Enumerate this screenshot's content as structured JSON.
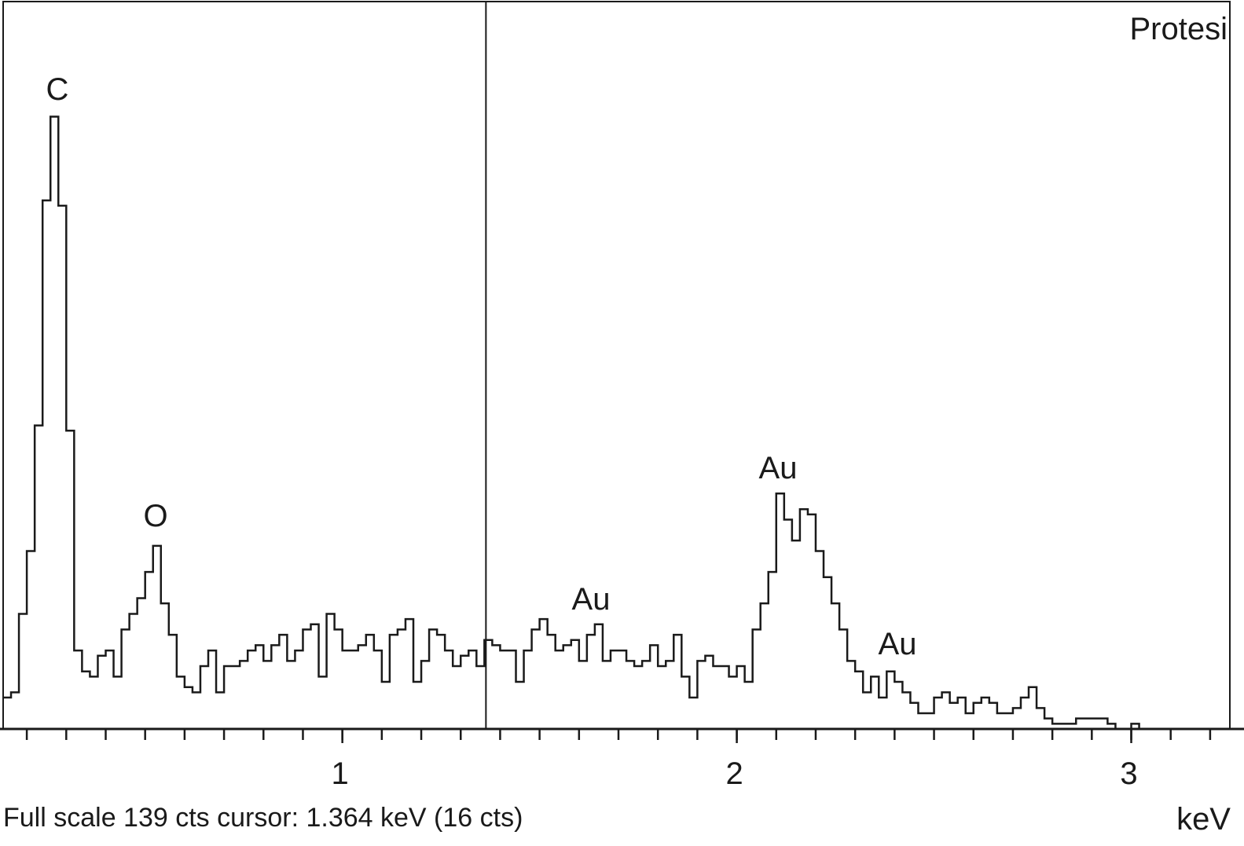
{
  "chart_data": {
    "type": "step",
    "title": "Protesi",
    "footer": "Full scale 139 cts cursor: 1.364 keV (16 cts)",
    "x_label": "keV",
    "annotations": [
      "C",
      "O",
      "Au",
      "Au",
      "Au"
    ],
    "cursor": 1.364,
    "color": "#1a1a1a",
    "xlim": [
      0.14,
      3.25
    ],
    "ylim": [
      0,
      139
    ],
    "xticks": [
      1,
      2,
      3
    ],
    "xminor_ticks": [
      0.2,
      0.3,
      0.4,
      0.5,
      0.6,
      0.7,
      0.8,
      0.9,
      1.0,
      1.1,
      1.2,
      1.3,
      1.4,
      1.5,
      1.6,
      1.7,
      1.8,
      1.9,
      2.0,
      2.1,
      2.2,
      2.3,
      2.4,
      2.5,
      2.6,
      2.7,
      2.8,
      2.9,
      3.0,
      3.1,
      3.2
    ],
    "x": [
      0.14,
      0.16,
      0.18,
      0.2,
      0.22,
      0.24,
      0.26,
      0.28,
      0.3,
      0.32,
      0.34,
      0.36,
      0.38,
      0.4,
      0.42,
      0.44,
      0.46,
      0.48,
      0.5,
      0.52,
      0.54,
      0.56,
      0.58,
      0.6,
      0.62,
      0.64,
      0.66,
      0.68,
      0.7,
      0.72,
      0.74,
      0.76,
      0.78,
      0.8,
      0.82,
      0.84,
      0.86,
      0.88,
      0.9,
      0.92,
      0.94,
      0.96,
      0.98,
      1.0,
      1.02,
      1.04,
      1.06,
      1.08,
      1.1,
      1.12,
      1.14,
      1.16,
      1.18,
      1.2,
      1.22,
      1.24,
      1.26,
      1.28,
      1.3,
      1.32,
      1.34,
      1.36,
      1.38,
      1.4,
      1.42,
      1.44,
      1.46,
      1.48,
      1.5,
      1.52,
      1.54,
      1.56,
      1.58,
      1.6,
      1.62,
      1.64,
      1.66,
      1.68,
      1.7,
      1.72,
      1.74,
      1.76,
      1.78,
      1.8,
      1.82,
      1.84,
      1.86,
      1.88,
      1.9,
      1.92,
      1.94,
      1.96,
      1.98,
      2.0,
      2.02,
      2.04,
      2.06,
      2.08,
      2.1,
      2.12,
      2.14,
      2.16,
      2.18,
      2.2,
      2.22,
      2.24,
      2.26,
      2.28,
      2.3,
      2.32,
      2.34,
      2.36,
      2.38,
      2.4,
      2.42,
      2.44,
      2.46,
      2.48,
      2.5,
      2.52,
      2.54,
      2.56,
      2.58,
      2.6,
      2.62,
      2.64,
      2.66,
      2.68,
      2.7,
      2.72,
      2.74,
      2.76,
      2.78,
      2.8,
      2.82,
      2.84,
      2.86,
      2.88,
      2.9,
      2.92,
      2.94,
      2.96,
      2.98,
      3.0,
      3.02
    ],
    "values": [
      6,
      7,
      22,
      34,
      58,
      101,
      117,
      100,
      57,
      15,
      11,
      10,
      14,
      15,
      10,
      19,
      22,
      25,
      30,
      35,
      24,
      18,
      10,
      8,
      7,
      12,
      15,
      7,
      12,
      12,
      13,
      15,
      16,
      13,
      16,
      18,
      13,
      15,
      19,
      20,
      10,
      22,
      19,
      15,
      15,
      16,
      18,
      15,
      9,
      18,
      19,
      21,
      9,
      13,
      19,
      18,
      15,
      12,
      14,
      15,
      12,
      17,
      16,
      15,
      15,
      9,
      15,
      19,
      21,
      18,
      15,
      16,
      17,
      13,
      18,
      20,
      13,
      15,
      15,
      13,
      12,
      13,
      16,
      12,
      13,
      18,
      10,
      6,
      13,
      14,
      12,
      12,
      10,
      12,
      9,
      19,
      24,
      30,
      45,
      40,
      36,
      42,
      41,
      34,
      29,
      24,
      19,
      13,
      11,
      7,
      10,
      6,
      11,
      9,
      7,
      5,
      3,
      3,
      6,
      7,
      5,
      6,
      3,
      5,
      6,
      5,
      3,
      3,
      4,
      6,
      8,
      4,
      2,
      1,
      1,
      1,
      2,
      2,
      2,
      2,
      1,
      0,
      0,
      1,
      0
    ]
  }
}
